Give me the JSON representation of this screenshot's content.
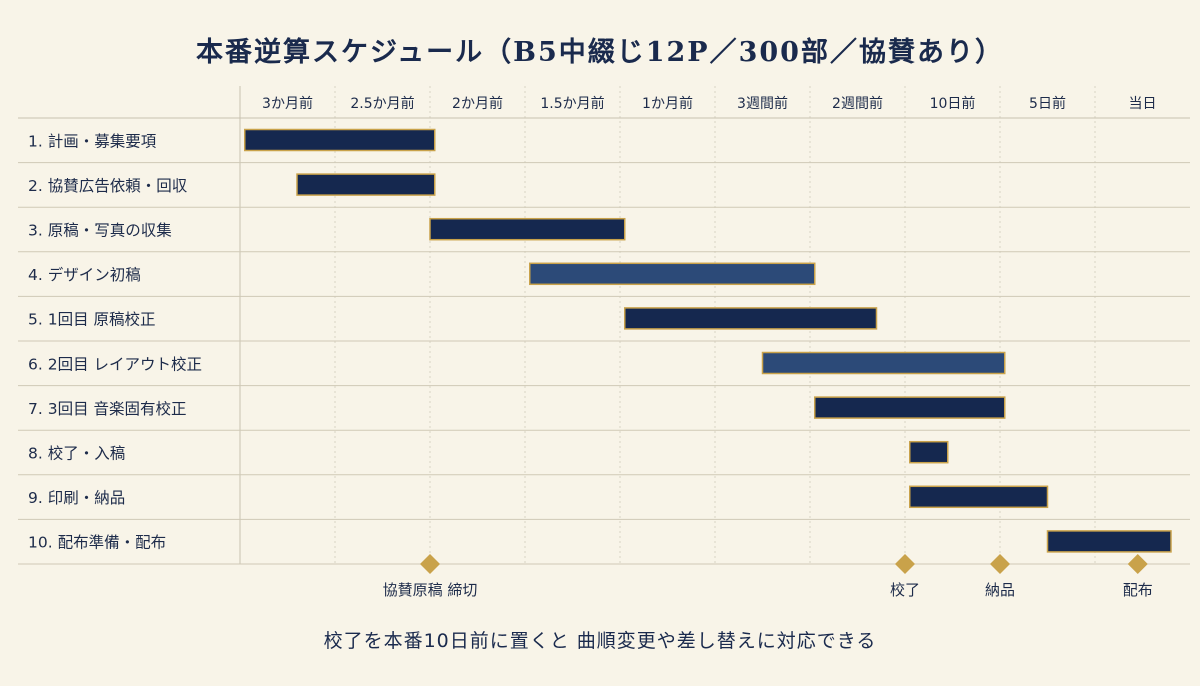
{
  "chart_data": {
    "type": "gantt",
    "title": "本番逆算スケジュール（B5中綴じ12P／300部／協賛あり）",
    "columns": [
      "3か月前",
      "2.5か月前",
      "2か月前",
      "1.5か月前",
      "1か月前",
      "3週間前",
      "2週間前",
      "10日前",
      "5日前",
      "当日"
    ],
    "tasks": [
      {
        "label": "1. 計画・募集要項",
        "start": 0.05,
        "end": 2.05,
        "color": "#15284f"
      },
      {
        "label": "2. 協賛広告依頼・回収",
        "start": 0.6,
        "end": 2.05,
        "color": "#15284f"
      },
      {
        "label": "3. 原稿・写真の収集",
        "start": 2.0,
        "end": 4.05,
        "color": "#15284f"
      },
      {
        "label": "4. デザイン初稿",
        "start": 3.05,
        "end": 6.05,
        "color": "#2c4a78"
      },
      {
        "label": "5. 1回目 原稿校正",
        "start": 4.05,
        "end": 6.7,
        "color": "#15284f"
      },
      {
        "label": "6. 2回目 レイアウト校正",
        "start": 5.5,
        "end": 8.05,
        "color": "#2c4a78"
      },
      {
        "label": "7. 3回目 音楽固有校正",
        "start": 6.05,
        "end": 8.05,
        "color": "#15284f"
      },
      {
        "label": "8. 校了・入稿",
        "start": 7.05,
        "end": 7.45,
        "color": "#15284f"
      },
      {
        "label": "9. 印刷・納品",
        "start": 7.05,
        "end": 8.5,
        "color": "#15284f"
      },
      {
        "label": "10. 配布準備・配布",
        "start": 8.5,
        "end": 9.8,
        "color": "#15284f"
      }
    ],
    "milestones": [
      {
        "label": "協賛原稿 締切",
        "x": 2.0
      },
      {
        "label": "校了",
        "x": 7.0
      },
      {
        "label": "納品",
        "x": 8.0
      },
      {
        "label": "配布",
        "x": 9.45
      }
    ],
    "colors": {
      "bar_border": "#c9a24a",
      "milestone": "#c9a24a",
      "grid": "#d9d4c4",
      "text": "#1d2b4a"
    }
  },
  "footer_note": "校了を本番10日前に置くと 曲順変更や差し替えに対応できる"
}
